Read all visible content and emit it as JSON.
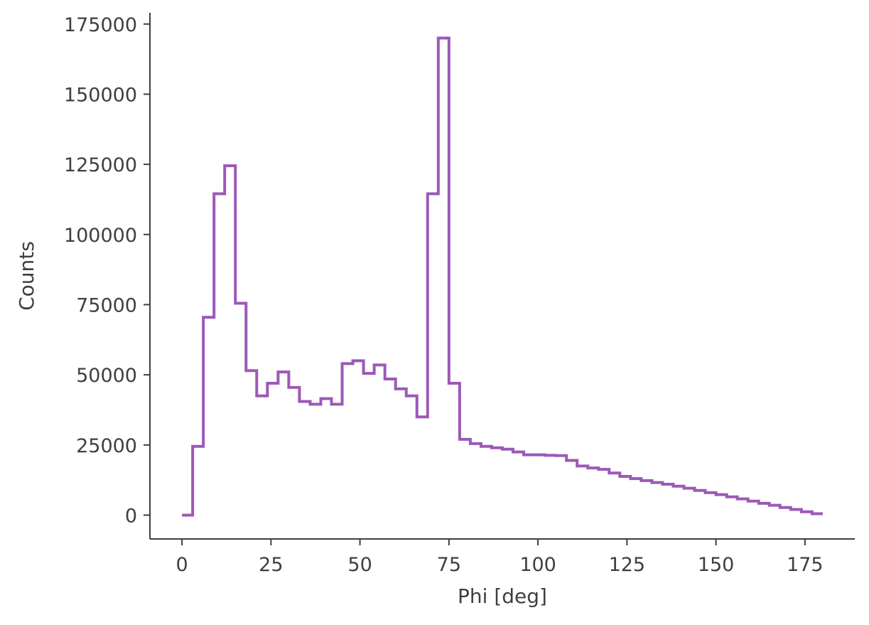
{
  "chart_data": {
    "type": "histogram",
    "title": "",
    "xlabel": "Phi [deg]",
    "ylabel": "Counts",
    "xlim": [
      -9,
      189
    ],
    "ylim": [
      -8500,
      179000
    ],
    "xticks": [
      0,
      25,
      50,
      75,
      100,
      125,
      150,
      175
    ],
    "yticks": [
      0,
      25000,
      50000,
      75000,
      100000,
      125000,
      150000,
      175000
    ],
    "grid": false,
    "legend": "none",
    "colors": {
      "series": "#9b59b6",
      "axis": "#3f3f3f"
    },
    "bin_edges": [
      0,
      3,
      6,
      9,
      12,
      15,
      18,
      21,
      24,
      27,
      30,
      33,
      36,
      39,
      42,
      45,
      48,
      51,
      54,
      57,
      60,
      63,
      66,
      69,
      72,
      75,
      78,
      81,
      84,
      87,
      90,
      93,
      96,
      99,
      102,
      105,
      108,
      111,
      114,
      117,
      120,
      123,
      126,
      129,
      132,
      135,
      138,
      141,
      144,
      147,
      150,
      153,
      156,
      159,
      162,
      165,
      168,
      171,
      174,
      177,
      180
    ],
    "series": [
      {
        "values": [
          0,
          24500,
          70500,
          114500,
          124500,
          75500,
          51500,
          42500,
          47000,
          51000,
          45500,
          40500,
          39500,
          41500,
          39500,
          54000,
          55000,
          50500,
          53500,
          48500,
          45000,
          42500,
          35000,
          114500,
          170000,
          47000,
          27000,
          25500,
          24500,
          24000,
          23500,
          22500,
          21500,
          21500,
          21300,
          21200,
          19500,
          17500,
          16800,
          16300,
          15000,
          13800,
          13000,
          12300,
          11600,
          11000,
          10300,
          9600,
          8800,
          8000,
          7300,
          6500,
          5800,
          5000,
          4200,
          3500,
          2700,
          2000,
          1200,
          500
        ]
      }
    ]
  }
}
